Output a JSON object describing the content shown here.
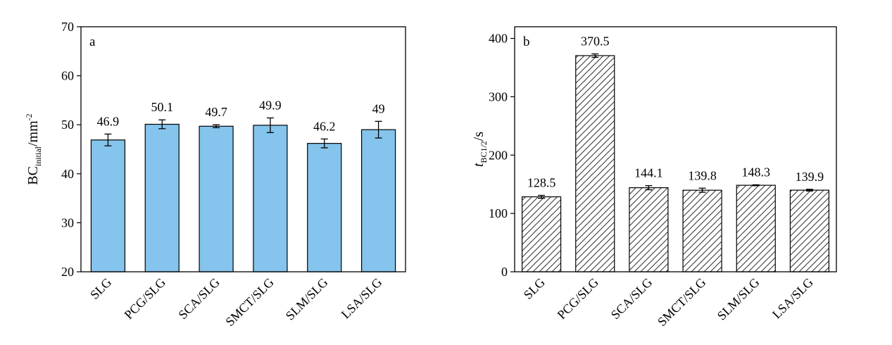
{
  "chart_data": [
    {
      "type": "bar",
      "panel_label": "a",
      "ylabel": {
        "main": "BC",
        "sub": "initial",
        "unit": "/mm",
        "sup": "-2"
      },
      "ylim": [
        20,
        70
      ],
      "yticks": [
        20,
        30,
        40,
        50,
        60,
        70
      ],
      "categories": [
        "SLG",
        "PCG/SLG",
        "SCA/SLG",
        "SMCT/SLG",
        "SLM/SLG",
        "LSA/SLG"
      ],
      "values": [
        46.9,
        50.1,
        49.7,
        49.9,
        46.2,
        49
      ],
      "errors": [
        1.2,
        0.9,
        0.3,
        1.5,
        0.9,
        1.7
      ],
      "data_labels": [
        "46.9",
        "50.1",
        "49.7",
        "49.9",
        "46.2",
        "49"
      ],
      "bar_color": "#85C4EC",
      "bar_pattern": "solid",
      "grid": false
    },
    {
      "type": "bar",
      "panel_label": "b",
      "ylabel": {
        "main": "t",
        "sub": "BC1/2",
        "unit": "/s",
        "sup": ""
      },
      "ylim": [
        0,
        420
      ],
      "yticks": [
        0,
        100,
        200,
        300,
        400
      ],
      "categories": [
        "SLG",
        "PCG/SLG",
        "SCA/SLG",
        "SMCT/SLG",
        "SLM/SLG",
        "LSA/SLG"
      ],
      "values": [
        128.5,
        370.5,
        144.1,
        139.8,
        148.3,
        139.9
      ],
      "errors": [
        2.5,
        3,
        3.5,
        3.5,
        0.8,
        1.5
      ],
      "data_labels": [
        "128.5",
        "370.5",
        "144.1",
        "139.8",
        "148.3",
        "139.9"
      ],
      "bar_color": "#ffffff",
      "bar_pattern": "diagonal-hatch",
      "grid": false
    }
  ]
}
